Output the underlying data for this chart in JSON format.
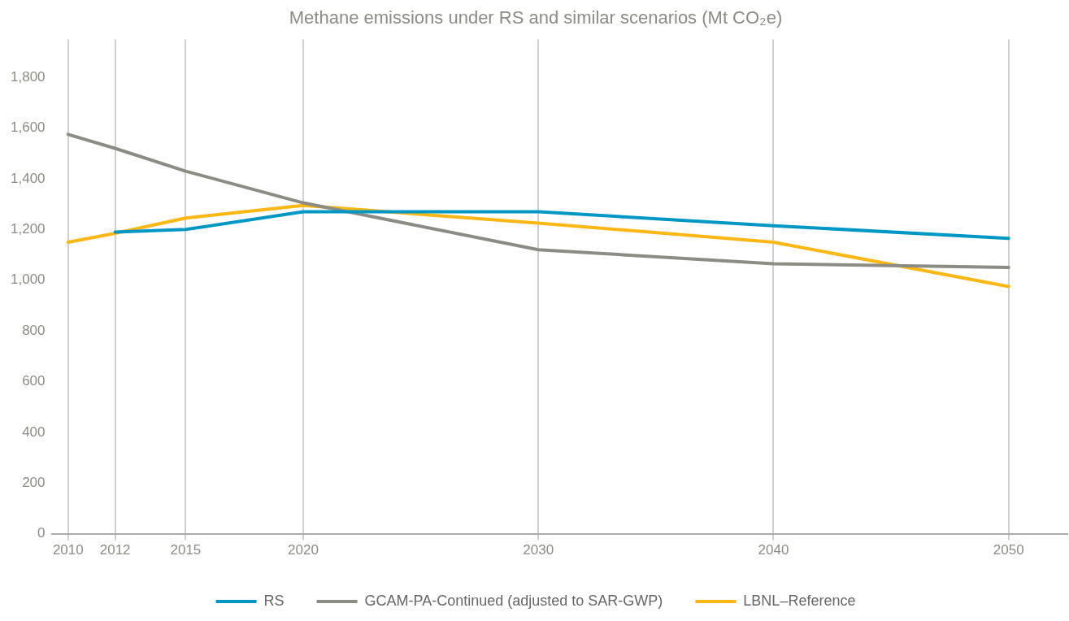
{
  "chart_data": {
    "type": "line",
    "title": "Methane emissions under RS and similar scenarios (Mt CO₂e)",
    "xlim": [
      2009.3,
      2052.5
    ],
    "xticks": [
      2010,
      2012,
      2015,
      2020,
      2030,
      2040,
      2050
    ],
    "ylim": [
      0,
      1950
    ],
    "yticks": [
      0,
      200,
      400,
      600,
      800,
      {
        "value": 1000,
        "label": "1,000"
      },
      {
        "value": 1200,
        "label": "1,200"
      },
      {
        "value": 1400,
        "label": "1,400"
      },
      {
        "value": 1600,
        "label": "1,600"
      },
      {
        "value": 1800,
        "label": "1,800"
      }
    ],
    "grid": "x",
    "legend": "bottom",
    "marker": "none",
    "line_style": "solid",
    "series": [
      {
        "name": "RS",
        "color": "#0097c4",
        "x": [
          2012,
          2015,
          2020,
          2030,
          2040,
          2050
        ],
        "values": [
          1190,
          1200,
          1270,
          1270,
          1215,
          1165
        ]
      },
      {
        "name": "GCAM-PA-Continued (adjusted to SAR-GWP)",
        "color": "#8c8c84",
        "x": [
          2010,
          2012,
          2015,
          2020,
          2030,
          2040,
          2050
        ],
        "values": [
          1575,
          1520,
          1430,
          1305,
          1120,
          1065,
          1050
        ]
      },
      {
        "name": "LBNL–Reference",
        "color": "#fbb714",
        "x": [
          2010,
          2012,
          2015,
          2020,
          2030,
          2040,
          2050
        ],
        "values": [
          1150,
          1185,
          1245,
          1295,
          1225,
          1150,
          975
        ]
      }
    ]
  }
}
